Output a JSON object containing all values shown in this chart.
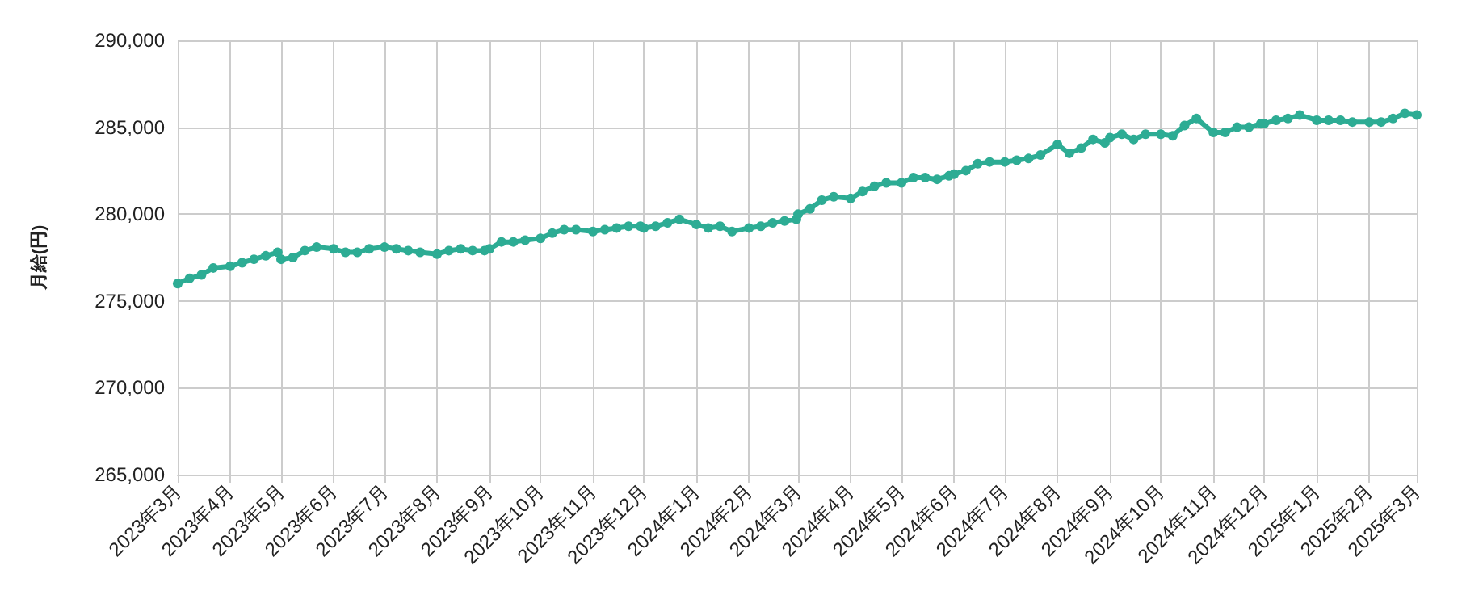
{
  "chart_data": {
    "type": "line",
    "ylabel": "月給(円)",
    "color": "#2dac94",
    "marker": "circle",
    "grid": true,
    "x": [
      "2023-03-01",
      "2023-03-08",
      "2023-03-15",
      "2023-03-22",
      "2023-04-01",
      "2023-04-08",
      "2023-04-15",
      "2023-04-22",
      "2023-04-29",
      "2023-05-01",
      "2023-05-08",
      "2023-05-15",
      "2023-05-22",
      "2023-06-01",
      "2023-06-08",
      "2023-06-15",
      "2023-06-22",
      "2023-07-01",
      "2023-07-08",
      "2023-07-15",
      "2023-07-22",
      "2023-08-01",
      "2023-08-08",
      "2023-08-15",
      "2023-08-22",
      "2023-08-29",
      "2023-09-01",
      "2023-09-08",
      "2023-09-15",
      "2023-09-22",
      "2023-10-01",
      "2023-10-08",
      "2023-10-15",
      "2023-10-22",
      "2023-11-01",
      "2023-11-08",
      "2023-11-15",
      "2023-11-22",
      "2023-11-29",
      "2023-12-01",
      "2023-12-08",
      "2023-12-15",
      "2023-12-22",
      "2024-01-01",
      "2024-01-08",
      "2024-01-15",
      "2024-01-22",
      "2024-02-01",
      "2024-02-08",
      "2024-02-15",
      "2024-02-22",
      "2024-02-29",
      "2024-03-01",
      "2024-03-08",
      "2024-03-15",
      "2024-03-22",
      "2024-04-01",
      "2024-04-08",
      "2024-04-15",
      "2024-04-22",
      "2024-05-01",
      "2024-05-08",
      "2024-05-15",
      "2024-05-22",
      "2024-05-29",
      "2024-06-01",
      "2024-06-08",
      "2024-06-15",
      "2024-06-22",
      "2024-07-01",
      "2024-07-08",
      "2024-07-15",
      "2024-07-22",
      "2024-08-01",
      "2024-08-08",
      "2024-08-15",
      "2024-08-22",
      "2024-08-29",
      "2024-09-01",
      "2024-09-08",
      "2024-09-15",
      "2024-09-22",
      "2024-10-01",
      "2024-10-08",
      "2024-10-15",
      "2024-10-22",
      "2024-11-01",
      "2024-11-08",
      "2024-11-15",
      "2024-11-22",
      "2024-11-29",
      "2024-12-01",
      "2024-12-08",
      "2024-12-15",
      "2024-12-22",
      "2025-01-01",
      "2025-01-08",
      "2025-01-15",
      "2025-01-22",
      "2025-02-01",
      "2025-02-08",
      "2025-02-15",
      "2025-02-22",
      "2025-03-01"
    ],
    "values": [
      276000,
      276300,
      276500,
      276900,
      277000,
      277200,
      277400,
      277600,
      277800,
      277400,
      277500,
      277900,
      278100,
      278000,
      277800,
      277800,
      278000,
      278100,
      278000,
      277900,
      277800,
      277700,
      277900,
      278000,
      277900,
      277900,
      278000,
      278400,
      278400,
      278500,
      278600,
      278900,
      279100,
      279100,
      279000,
      279100,
      279200,
      279300,
      279300,
      279200,
      279300,
      279500,
      279700,
      279400,
      279200,
      279300,
      279000,
      279200,
      279300,
      279500,
      279600,
      279700,
      280000,
      280300,
      280800,
      281000,
      280900,
      281300,
      281600,
      281800,
      281800,
      282100,
      282100,
      282000,
      282200,
      282300,
      282500,
      282900,
      283000,
      283000,
      283100,
      283200,
      283400,
      284000,
      283500,
      283800,
      284300,
      284100,
      284400,
      284600,
      284300,
      284600,
      284600,
      284500,
      285100,
      285500,
      284700,
      284700,
      285000,
      285000,
      285200,
      285200,
      285400,
      285500,
      285700,
      285400,
      285400,
      285400,
      285300,
      285300,
      285300,
      285500,
      285800,
      285700
    ],
    "xlim": [
      "2023-03-01",
      "2025-03-01"
    ],
    "xticks": [
      {
        "value": "2023-03",
        "label": "2023年3月"
      },
      {
        "value": "2023-04",
        "label": "2023年4月"
      },
      {
        "value": "2023-05",
        "label": "2023年5月"
      },
      {
        "value": "2023-06",
        "label": "2023年6月"
      },
      {
        "value": "2023-07",
        "label": "2023年7月"
      },
      {
        "value": "2023-08",
        "label": "2023年8月"
      },
      {
        "value": "2023-09",
        "label": "2023年9月"
      },
      {
        "value": "2023-10",
        "label": "2023年10月"
      },
      {
        "value": "2023-11",
        "label": "2023年11月"
      },
      {
        "value": "2023-12",
        "label": "2023年12月"
      },
      {
        "value": "2024-01",
        "label": "2024年1月"
      },
      {
        "value": "2024-02",
        "label": "2024年2月"
      },
      {
        "value": "2024-03",
        "label": "2024年3月"
      },
      {
        "value": "2024-04",
        "label": "2024年4月"
      },
      {
        "value": "2024-05",
        "label": "2024年5月"
      },
      {
        "value": "2024-06",
        "label": "2024年6月"
      },
      {
        "value": "2024-07",
        "label": "2024年7月"
      },
      {
        "value": "2024-08",
        "label": "2024年8月"
      },
      {
        "value": "2024-09",
        "label": "2024年9月"
      },
      {
        "value": "2024-10",
        "label": "2024年10月"
      },
      {
        "value": "2024-11",
        "label": "2024年11月"
      },
      {
        "value": "2024-12",
        "label": "2024年12月"
      },
      {
        "value": "2025-01",
        "label": "2025年1月"
      },
      {
        "value": "2025-02",
        "label": "2025年2月"
      },
      {
        "value": "2025-03",
        "label": "2025年3月"
      }
    ],
    "ylim": [
      265000,
      290000
    ],
    "yticks": [
      {
        "value": 265000,
        "label": "265,000"
      },
      {
        "value": 270000,
        "label": "270,000"
      },
      {
        "value": 275000,
        "label": "275,000"
      },
      {
        "value": 280000,
        "label": "280,000"
      },
      {
        "value": 285000,
        "label": "285,000"
      },
      {
        "value": 290000,
        "label": "290,000"
      }
    ]
  }
}
